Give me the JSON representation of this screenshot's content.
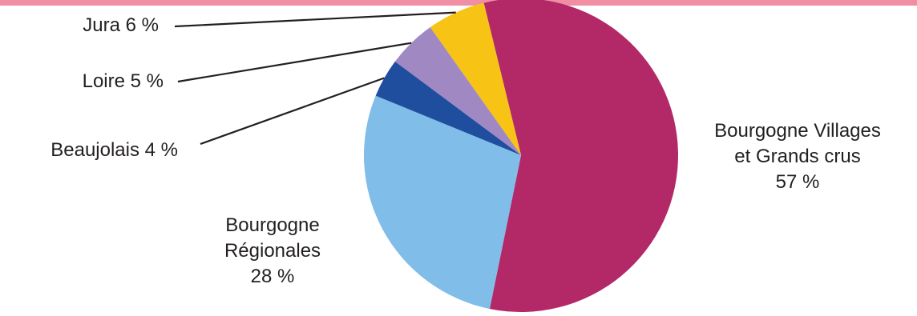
{
  "chart_data": {
    "type": "pie",
    "title": "",
    "slices": [
      {
        "name": "Bourgogne Villages et Grands crus",
        "value": 57,
        "value_label": "57 %",
        "color": "#b32866",
        "label_lines": [
          "Bourgogne Villages",
          "et Grands crus",
          "57 %"
        ]
      },
      {
        "name": "Bourgogne Régionales",
        "value": 28,
        "value_label": "28 %",
        "color": "#80bde8",
        "label_lines": [
          "Bourgogne",
          "Régionales",
          "28 %"
        ]
      },
      {
        "name": "Beaujolais",
        "value": 4,
        "value_label": "4 %",
        "color": "#1f4e9e",
        "label_lines": [
          "Beaujolais 4 %"
        ]
      },
      {
        "name": "Loire",
        "value": 5,
        "value_label": "5 %",
        "color": "#a088c2",
        "label_lines": [
          "Loire 5 %"
        ]
      },
      {
        "name": "Jura",
        "value": 6,
        "value_label": "6 %",
        "color": "#f7c314",
        "label_lines": [
          "Jura 6 %"
        ]
      }
    ]
  },
  "style": {
    "top_bar_color": "#f08fa3",
    "leader_line_color": "#231f20"
  }
}
